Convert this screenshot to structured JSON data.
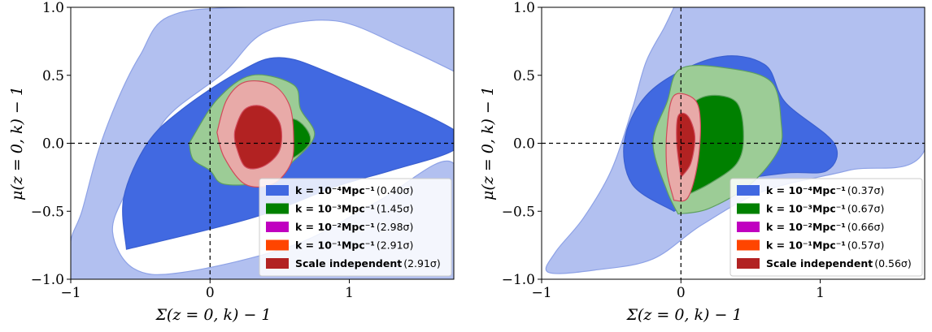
{
  "chart_data": [
    {
      "type": "contour",
      "xlabel": "Σ(z = 0, k) − 1",
      "ylabel": "μ(z = 0, k) − 1",
      "xlim": [
        -1,
        1.75
      ],
      "ylim": [
        -1,
        1
      ],
      "xticks": [
        "−1",
        "0",
        "1"
      ],
      "yticks": [
        "−1.0",
        "−0.5",
        "0.0",
        "0.5",
        "1.0"
      ],
      "reference_lines": {
        "x": 0,
        "y": 0,
        "style": "dashed"
      },
      "legend_position": "lower-right",
      "series": [
        {
          "name": "k = 10⁻⁴Mpc⁻¹",
          "sigma": "(0.40σ)",
          "color": "#4169e1",
          "light_color": "#b2c0f0"
        },
        {
          "name": "k = 10⁻³Mpc⁻¹",
          "sigma": "(1.45σ)",
          "color": "#008000",
          "light_color": "#9ccc96"
        },
        {
          "name": "k = 10⁻²Mpc⁻¹",
          "sigma": "(2.98σ)",
          "color": "#c000c0"
        },
        {
          "name": "k = 10⁻¹Mpc⁻¹",
          "sigma": "(2.91σ)",
          "color": "#ff4500"
        },
        {
          "name": "Scale independent",
          "sigma": "(2.91σ)",
          "color": "#b22222",
          "light_color": "#e8aaa8"
        }
      ],
      "contours": [
        {
          "series": 0,
          "level": "2σ",
          "color": "#b2c0f0",
          "points": [
            [
              1.75,
              0.53
            ],
            [
              1.75,
              1.0
            ],
            [
              0.25,
              1.0
            ],
            [
              -0.3,
              0.93
            ],
            [
              -0.5,
              0.65
            ],
            [
              -0.65,
              0.35
            ],
            [
              -0.8,
              -0.05
            ],
            [
              -0.92,
              -0.5
            ],
            [
              -1.0,
              -0.72
            ],
            [
              -1.0,
              -1.0
            ],
            [
              1.75,
              -1.0
            ],
            [
              1.75,
              -0.15
            ],
            [
              1.2,
              -0.43
            ],
            [
              0.6,
              -0.75
            ],
            [
              -0.2,
              -0.95
            ],
            [
              -0.55,
              -0.92
            ],
            [
              -0.7,
              -0.65
            ],
            [
              -0.6,
              -0.35
            ],
            [
              -0.4,
              0.05
            ],
            [
              -0.25,
              0.25
            ],
            [
              0.1,
              0.52
            ],
            [
              0.4,
              0.82
            ],
            [
              0.9,
              0.9
            ],
            [
              1.4,
              0.7
            ],
            [
              1.75,
              0.53
            ]
          ]
        },
        {
          "series": 0,
          "level": "1σ",
          "color": "#4169e1",
          "points": [
            [
              -0.6,
              -0.78
            ],
            [
              -0.62,
              -0.4
            ],
            [
              -0.45,
              0.0
            ],
            [
              -0.2,
              0.25
            ],
            [
              0.2,
              0.52
            ],
            [
              0.5,
              0.63
            ],
            [
              0.9,
              0.5
            ],
            [
              1.75,
              0.1
            ],
            [
              1.75,
              -0.05
            ],
            [
              1.3,
              -0.2
            ],
            [
              0.9,
              -0.32
            ],
            [
              0.3,
              -0.55
            ],
            [
              -0.6,
              -0.78
            ]
          ]
        },
        {
          "series": 1,
          "level": "2σ",
          "color": "#9ccc96",
          "points": [
            [
              -0.15,
              0.0
            ],
            [
              -0.12,
              -0.12
            ],
            [
              0.0,
              -0.2
            ],
            [
              0.1,
              -0.3
            ],
            [
              0.4,
              -0.28
            ],
            [
              0.6,
              -0.13
            ],
            [
              0.75,
              0.06
            ],
            [
              0.65,
              0.25
            ],
            [
              0.6,
              0.43
            ],
            [
              0.3,
              0.5
            ],
            [
              0.05,
              0.32
            ],
            [
              -0.15,
              0.0
            ]
          ]
        },
        {
          "series": 1,
          "level": "1σ",
          "color": "#008000",
          "points": [
            [
              0.3,
              -0.15
            ],
            [
              0.55,
              -0.13
            ],
            [
              0.72,
              0.02
            ],
            [
              0.6,
              0.18
            ],
            [
              0.35,
              0.12
            ],
            [
              0.3,
              -0.15
            ]
          ]
        },
        {
          "series": 4,
          "level": "2σ",
          "color": "#e8aaa8",
          "points": [
            [
              0.05,
              0.08
            ],
            [
              0.1,
              -0.1
            ],
            [
              0.25,
              -0.3
            ],
            [
              0.45,
              -0.3
            ],
            [
              0.58,
              -0.15
            ],
            [
              0.6,
              0.05
            ],
            [
              0.57,
              0.28
            ],
            [
              0.45,
              0.43
            ],
            [
              0.25,
              0.45
            ],
            [
              0.12,
              0.32
            ],
            [
              0.05,
              0.08
            ]
          ]
        },
        {
          "series": 4,
          "level": "1σ",
          "color": "#b22222",
          "points": [
            [
              0.18,
              0.0
            ],
            [
              0.25,
              -0.17
            ],
            [
              0.38,
              -0.17
            ],
            [
              0.5,
              -0.05
            ],
            [
              0.5,
              0.15
            ],
            [
              0.38,
              0.27
            ],
            [
              0.25,
              0.25
            ],
            [
              0.18,
              0.1
            ],
            [
              0.18,
              0.0
            ]
          ]
        }
      ]
    },
    {
      "type": "contour",
      "xlabel": "Σ(z = 0, k) − 1",
      "ylabel": "μ(z = 0, k) − 1",
      "xlim": [
        -1,
        1.75
      ],
      "ylim": [
        -1,
        1
      ],
      "xticks": [
        "−1",
        "0",
        "1"
      ],
      "yticks": [
        "−1.0",
        "−0.5",
        "0.0",
        "0.5",
        "1.0"
      ],
      "reference_lines": {
        "x": 0,
        "y": 0,
        "style": "dashed"
      },
      "legend_position": "lower-right",
      "series": [
        {
          "name": "k = 10⁻⁴Mpc⁻¹",
          "sigma": "(0.37σ)",
          "color": "#4169e1",
          "light_color": "#b2c0f0"
        },
        {
          "name": "k = 10⁻³Mpc⁻¹",
          "sigma": "(0.67σ)",
          "color": "#008000",
          "light_color": "#9ccc96"
        },
        {
          "name": "k = 10⁻²Mpc⁻¹",
          "sigma": "(0.66σ)",
          "color": "#c000c0"
        },
        {
          "name": "k = 10⁻¹Mpc⁻¹",
          "sigma": "(0.57σ)",
          "color": "#ff4500"
        },
        {
          "name": "Scale independent",
          "sigma": "(0.56σ)",
          "color": "#b22222",
          "light_color": "#e8aaa8"
        }
      ],
      "contours": [
        {
          "series": 0,
          "level": "2σ",
          "color": "#b2c0f0",
          "points": [
            [
              -0.05,
              1.0
            ],
            [
              1.75,
              1.0
            ],
            [
              1.75,
              -0.05
            ],
            [
              1.2,
              -0.2
            ],
            [
              0.6,
              -0.35
            ],
            [
              0.15,
              -0.6
            ],
            [
              -0.2,
              -0.85
            ],
            [
              -0.6,
              -0.93
            ],
            [
              -0.95,
              -0.95
            ],
            [
              -0.9,
              -0.8
            ],
            [
              -0.7,
              -0.55
            ],
            [
              -0.5,
              -0.2
            ],
            [
              -0.35,
              0.25
            ],
            [
              -0.25,
              0.6
            ],
            [
              -0.12,
              0.85
            ],
            [
              -0.05,
              1.0
            ]
          ]
        },
        {
          "series": 0,
          "level": "1σ",
          "color": "#4169e1",
          "points": [
            [
              -0.05,
              -0.5
            ],
            [
              0.3,
              -0.3
            ],
            [
              0.75,
              -0.22
            ],
            [
              1.05,
              -0.2
            ],
            [
              1.1,
              0.0
            ],
            [
              0.75,
              0.3
            ],
            [
              0.6,
              0.58
            ],
            [
              0.25,
              0.63
            ],
            [
              -0.2,
              0.4
            ],
            [
              -0.4,
              0.05
            ],
            [
              -0.35,
              -0.3
            ],
            [
              -0.05,
              -0.5
            ]
          ]
        },
        {
          "series": 1,
          "level": "2σ",
          "color": "#9ccc96",
          "points": [
            [
              -0.02,
              -0.52
            ],
            [
              0.2,
              -0.48
            ],
            [
              0.5,
              -0.3
            ],
            [
              0.7,
              -0.05
            ],
            [
              0.72,
              0.15
            ],
            [
              0.65,
              0.45
            ],
            [
              0.35,
              0.55
            ],
            [
              0.0,
              0.55
            ],
            [
              -0.1,
              0.3
            ],
            [
              -0.2,
              0.0
            ],
            [
              -0.1,
              -0.35
            ],
            [
              -0.02,
              -0.52
            ]
          ]
        },
        {
          "series": 1,
          "level": "1σ",
          "color": "#008000",
          "points": [
            [
              0.0,
              -0.4
            ],
            [
              0.2,
              -0.3
            ],
            [
              0.4,
              -0.15
            ],
            [
              0.45,
              0.05
            ],
            [
              0.4,
              0.3
            ],
            [
              0.2,
              0.35
            ],
            [
              0.05,
              0.25
            ],
            [
              -0.02,
              0.0
            ],
            [
              0.0,
              -0.4
            ]
          ]
        },
        {
          "series": 4,
          "level": "2σ",
          "color": "#e8aaa8",
          "points": [
            [
              -0.05,
              -0.42
            ],
            [
              0.05,
              -0.4
            ],
            [
              0.12,
              -0.15
            ],
            [
              0.14,
              0.15
            ],
            [
              0.1,
              0.32
            ],
            [
              -0.05,
              0.35
            ],
            [
              -0.1,
              0.1
            ],
            [
              -0.1,
              -0.2
            ],
            [
              -0.05,
              -0.42
            ]
          ]
        },
        {
          "series": 4,
          "level": "1σ",
          "color": "#b22222",
          "points": [
            [
              0.0,
              -0.25
            ],
            [
              0.07,
              -0.15
            ],
            [
              0.1,
              0.05
            ],
            [
              0.05,
              0.2
            ],
            [
              -0.02,
              0.2
            ],
            [
              -0.03,
              0.0
            ],
            [
              0.0,
              -0.25
            ]
          ]
        }
      ]
    }
  ]
}
